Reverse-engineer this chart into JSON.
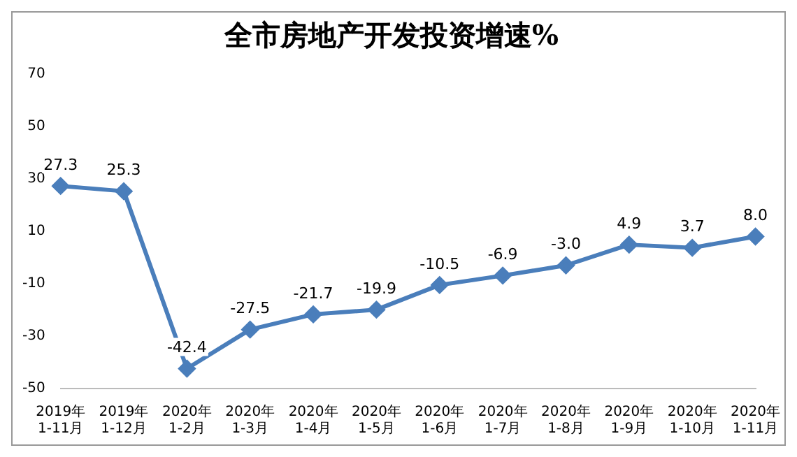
{
  "chart_data": {
    "type": "line",
    "title": "全市房地产开发投资增速%",
    "categories": [
      "2019年\n1-11月",
      "2019年\n1-12月",
      "2020年\n1-2月",
      "2020年\n1-3月",
      "2020年\n1-4月",
      "2020年\n1-5月",
      "2020年\n1-6月",
      "2020年\n1-7月",
      "2020年\n1-8月",
      "2020年\n1-9月",
      "2020年\n1-10月",
      "2020年\n1-11月"
    ],
    "series": [
      {
        "color": "#4a7ebb",
        "values": [
          27.3,
          25.3,
          -42.4,
          -27.5,
          -21.7,
          -19.9,
          -10.5,
          -6.9,
          -3.0,
          4.9,
          3.7,
          8.0
        ],
        "value_labels": [
          "27.3",
          "25.3",
          "-42.4",
          "-27.5",
          "-21.7",
          "-19.9",
          "-10.5",
          "-6.9",
          "-3.0",
          "4.9",
          "3.7",
          "8.0"
        ]
      }
    ],
    "ylim": [
      -50,
      70
    ],
    "yticks": [
      -50,
      -30,
      -10,
      10,
      30,
      50,
      70
    ],
    "grid": false,
    "legend": false,
    "marker": "diamond",
    "line_style": "solid"
  }
}
